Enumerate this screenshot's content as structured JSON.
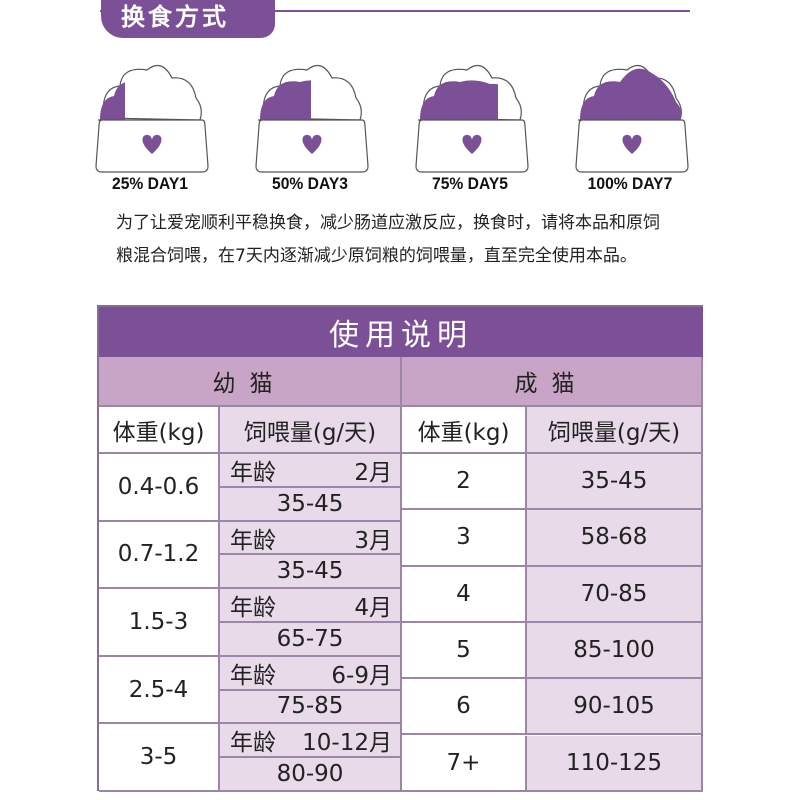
{
  "section_tab": "换食方式",
  "transition_steps": [
    {
      "label": "25% DAY1",
      "percent": 25
    },
    {
      "label": "50% DAY3",
      "percent": 50
    },
    {
      "label": "75% DAY5",
      "percent": 75
    },
    {
      "label": "100% DAY7",
      "percent": 100
    }
  ],
  "instructions": [
    "为了让爱宠顺利平稳换食，减少肠道应激反应，换食时，请将本品和原饲",
    "粮混合饲喂，在7天内逐渐减少原饲粮的饲喂量，直至完全使用本品。"
  ],
  "table": {
    "title": "使用说明",
    "kitten_header": "幼猫",
    "adult_header": "成猫",
    "col_weight": "体重(kg)",
    "col_feed": "饲喂量(g/天)",
    "age_label": "年龄",
    "kitten_rows": [
      {
        "weight": "0.4-0.6",
        "age": "2月",
        "feed": "35-45"
      },
      {
        "weight": "0.7-1.2",
        "age": "3月",
        "feed": "35-45"
      },
      {
        "weight": "1.5-3",
        "age": "4月",
        "feed": "65-75"
      },
      {
        "weight": "2.5-4",
        "age": "6-9月",
        "feed": "75-85"
      },
      {
        "weight": "3-5",
        "age": "10-12月",
        "feed": "80-90"
      }
    ],
    "adult_rows": [
      {
        "weight": "2",
        "feed": "35-45"
      },
      {
        "weight": "3",
        "feed": "58-68"
      },
      {
        "weight": "4",
        "feed": "70-85"
      },
      {
        "weight": "5",
        "feed": "85-100"
      },
      {
        "weight": "6",
        "feed": "90-105"
      },
      {
        "weight": "7+",
        "feed": "110-125"
      }
    ]
  },
  "colors": {
    "brand_purple": "#7b5096",
    "header_purple": "#c8a4c6",
    "cell_lilac": "#e9dae9"
  }
}
